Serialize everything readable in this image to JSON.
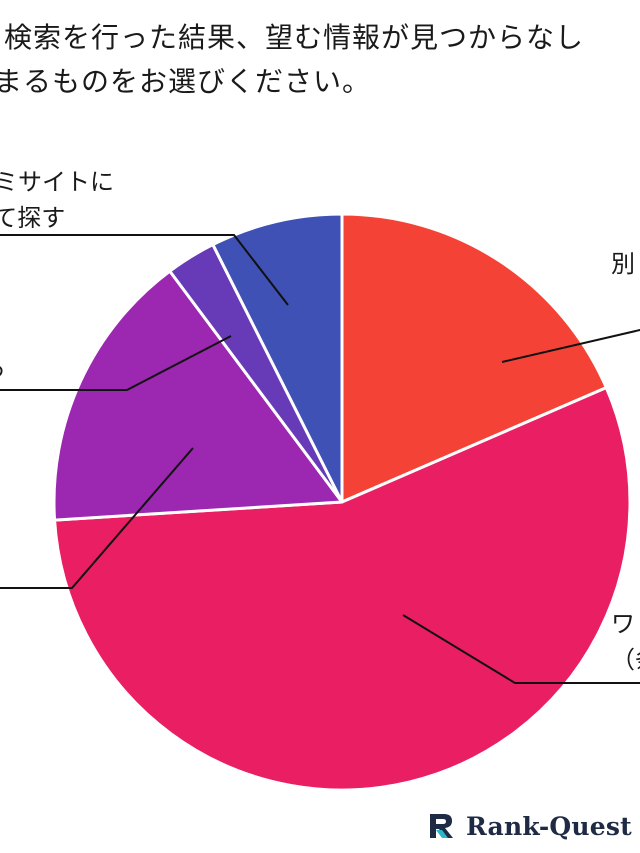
{
  "question": {
    "line1": "検索を行った結果、望む情報が見つからなし",
    "line2": "まるものをお選びください。"
  },
  "chart_data": {
    "type": "pie",
    "title": "",
    "slices": [
      {
        "label_lines": [
          "別"
        ],
        "value": 18.5,
        "color": "#f44336"
      },
      {
        "label_lines": [
          "ワ",
          "（条"
        ],
        "value": 55.5,
        "color": "#e91e63"
      },
      {
        "label_lines": [
          ""
        ],
        "value": 15.8,
        "color": "#9c27b0"
      },
      {
        "label_lines": [
          "る"
        ],
        "value": 2.8,
        "color": "#673ab7"
      },
      {
        "label_lines": [
          "コミサイトに",
          "して探す"
        ],
        "value": 7.4,
        "color": "#3f51b5"
      }
    ],
    "start_angle_deg": 0,
    "direction": "clockwise",
    "legend": "none"
  },
  "brand": {
    "name": "Rank-Quest",
    "icon": "rank-quest-logo-icon",
    "color": "#1f2a44",
    "accent": "#2bb7c9"
  }
}
